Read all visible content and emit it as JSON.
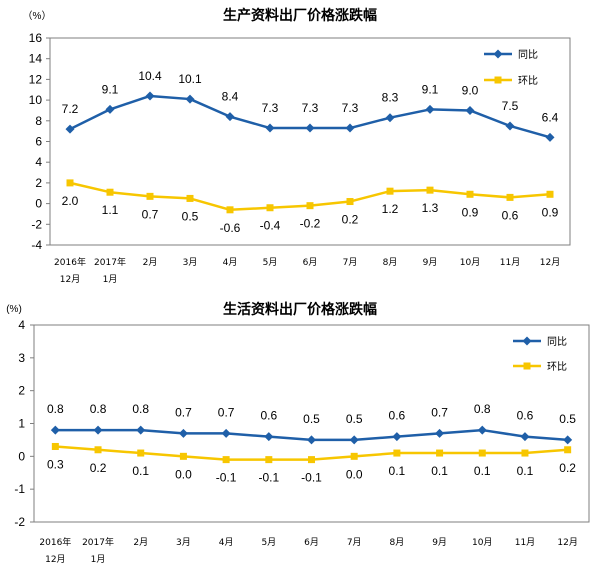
{
  "chart_data": [
    {
      "type": "line",
      "title": "生产资料出厂价格涨跌幅",
      "unit": "（%）",
      "ylim": [
        -4,
        16
      ],
      "yticks": [
        16,
        14,
        12,
        10,
        8,
        6,
        4,
        2,
        0,
        -2,
        -4
      ],
      "categories": [
        [
          "2016年",
          "12月"
        ],
        [
          "2017年",
          "1月"
        ],
        [
          "2月"
        ],
        [
          "3月"
        ],
        [
          "4月"
        ],
        [
          "5月"
        ],
        [
          "6月"
        ],
        [
          "7月"
        ],
        [
          "8月"
        ],
        [
          "9月"
        ],
        [
          "10月"
        ],
        [
          "11月"
        ],
        [
          "12月"
        ]
      ],
      "legend_position": "top-right",
      "series": [
        {
          "name": "同比",
          "color": "#1F5FA8",
          "marker": "diamond",
          "values": [
            7.2,
            9.1,
            10.4,
            10.1,
            8.4,
            7.3,
            7.3,
            7.3,
            8.3,
            9.1,
            9.0,
            7.5,
            6.4
          ],
          "labels": [
            "7.2",
            "9.1",
            "10.4",
            "10.1",
            "8.4",
            "7.3",
            "7.3",
            "7.3",
            "8.3",
            "9.1",
            "9.0",
            "7.5",
            "6.4"
          ]
        },
        {
          "name": "环比",
          "color": "#F7C600",
          "marker": "square",
          "values": [
            2.0,
            1.1,
            0.7,
            0.5,
            -0.6,
            -0.4,
            -0.2,
            0.2,
            1.2,
            1.3,
            0.9,
            0.6,
            0.9
          ],
          "labels": [
            "2.0",
            "1.1",
            "0.7",
            "0.5",
            "-0.6",
            "-0.4",
            "-0.2",
            "0.2",
            "1.2",
            "1.3",
            "0.9",
            "0.6",
            "0.9"
          ]
        }
      ]
    },
    {
      "type": "line",
      "title": "生活资料出厂价格涨跌幅",
      "unit": "(%)",
      "ylim": [
        -2,
        4
      ],
      "yticks": [
        4,
        3,
        2,
        1,
        0,
        -1,
        -2
      ],
      "categories": [
        [
          "2016年",
          "12月"
        ],
        [
          "2017年",
          "1月"
        ],
        [
          "2月"
        ],
        [
          "3月"
        ],
        [
          "4月"
        ],
        [
          "5月"
        ],
        [
          "6月"
        ],
        [
          "7月"
        ],
        [
          "8月"
        ],
        [
          "9月"
        ],
        [
          "10月"
        ],
        [
          "11月"
        ],
        [
          "12月"
        ]
      ],
      "legend_position": "top-right",
      "series": [
        {
          "name": "同比",
          "color": "#1F5FA8",
          "marker": "diamond",
          "values": [
            0.8,
            0.8,
            0.8,
            0.7,
            0.7,
            0.6,
            0.5,
            0.5,
            0.6,
            0.7,
            0.8,
            0.6,
            0.5
          ],
          "labels": [
            "0.8",
            "0.8",
            "0.8",
            "0.7",
            "0.7",
            "0.6",
            "0.5",
            "0.5",
            "0.6",
            "0.7",
            "0.8",
            "0.6",
            "0.5"
          ]
        },
        {
          "name": "环比",
          "color": "#F7C600",
          "marker": "square",
          "values": [
            0.3,
            0.2,
            0.1,
            0.0,
            -0.1,
            -0.1,
            -0.1,
            0.0,
            0.1,
            0.1,
            0.1,
            0.1,
            0.2
          ],
          "labels": [
            "0.3",
            "0.2",
            "0.1",
            "0.0",
            "-0.1",
            "-0.1",
            "-0.1",
            "0.0",
            "0.1",
            "0.1",
            "0.1",
            "0.1",
            "0.2"
          ]
        }
      ]
    }
  ]
}
